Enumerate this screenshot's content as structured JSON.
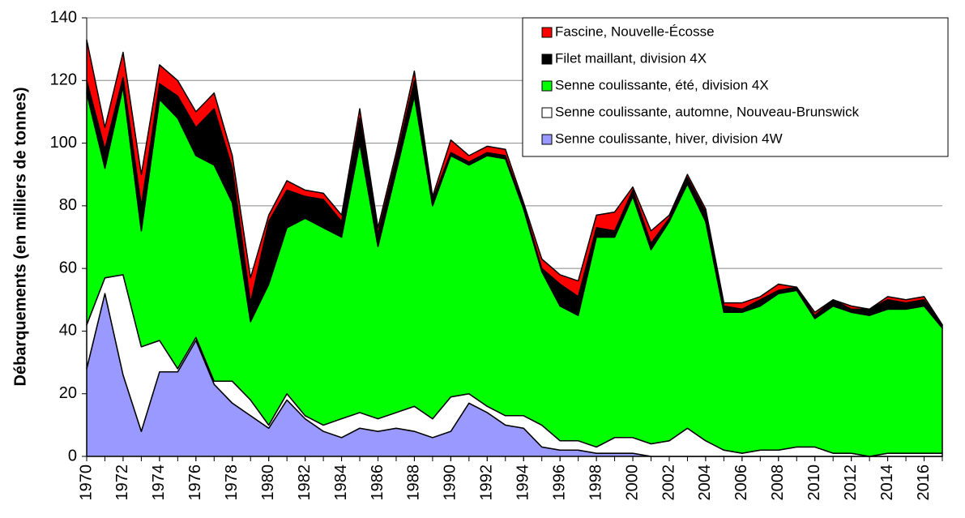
{
  "chart_data": {
    "type": "stacked-area",
    "ylabel": "Débarquements (en milliers de tonnes)",
    "x": [
      1970,
      1971,
      1972,
      1973,
      1974,
      1975,
      1976,
      1977,
      1978,
      1979,
      1980,
      1981,
      1982,
      1983,
      1984,
      1985,
      1986,
      1987,
      1988,
      1989,
      1990,
      1991,
      1992,
      1993,
      1994,
      1995,
      1996,
      1997,
      1998,
      1999,
      2000,
      2001,
      2002,
      2003,
      2004,
      2005,
      2006,
      2007,
      2008,
      2009,
      2010,
      2011,
      2012,
      2013,
      2014,
      2015,
      2016,
      2017
    ],
    "xlim": [
      1970,
      2017
    ],
    "xticks": [
      1970,
      1972,
      1974,
      1976,
      1978,
      1980,
      1982,
      1984,
      1986,
      1988,
      1990,
      1992,
      1994,
      1996,
      1998,
      2000,
      2002,
      2004,
      2006,
      2008,
      2010,
      2012,
      2014,
      2016
    ],
    "ylim": [
      0,
      140
    ],
    "yticks": [
      0,
      20,
      40,
      60,
      80,
      100,
      120,
      140
    ],
    "grid": true,
    "legend": "upper right",
    "series": [
      {
        "name": "Senne coulissante, hiver, division 4W",
        "color": "#9999ff",
        "values": [
          28,
          52,
          26,
          8,
          27,
          27,
          37,
          23,
          17,
          13,
          9,
          18,
          12,
          8,
          6,
          9,
          8,
          9,
          8,
          6,
          8,
          17,
          14,
          10,
          9,
          3,
          2,
          2,
          1,
          1,
          1,
          0,
          0,
          0,
          0,
          0,
          0,
          0,
          0,
          0,
          0,
          0,
          0,
          0,
          0,
          0,
          0,
          0
        ]
      },
      {
        "name": "Senne coulissante, automne, Nouveau-Brunswick",
        "color": "#ffffff",
        "values": [
          14,
          5,
          32,
          27,
          10,
          1,
          1,
          1,
          7,
          5,
          1,
          2,
          1,
          2,
          6,
          5,
          4,
          5,
          8,
          6,
          11,
          3,
          2,
          3,
          4,
          7,
          3,
          3,
          2,
          5,
          5,
          4,
          5,
          9,
          5,
          2,
          1,
          2,
          2,
          3,
          3,
          1,
          1,
          0,
          1,
          1,
          1,
          1
        ]
      },
      {
        "name": "Senne coulissante, été, division 4X",
        "color": "#00ff00",
        "values": [
          74,
          35,
          60,
          37,
          77,
          80,
          58,
          69,
          57,
          25,
          45,
          53,
          63,
          63,
          58,
          86,
          55,
          77,
          99,
          68,
          77,
          73,
          80,
          82,
          66,
          49,
          43,
          40,
          67,
          64,
          77,
          62,
          70,
          78,
          70,
          44,
          45,
          46,
          50,
          50,
          41,
          47,
          45,
          45,
          46,
          46,
          47,
          40
        ]
      },
      {
        "name": "Filet maillant, division 4X",
        "color": "#000000",
        "values": [
          4,
          6,
          3,
          8,
          5,
          7,
          9,
          18,
          11,
          6,
          20,
          12,
          7,
          9,
          5,
          8,
          4,
          4,
          5,
          2,
          1,
          1,
          1,
          1,
          1,
          1,
          7,
          6,
          3,
          2,
          2,
          2,
          1,
          2,
          3,
          2,
          1,
          2,
          1,
          1,
          1,
          2,
          1,
          2,
          3,
          2,
          2,
          1
        ]
      },
      {
        "name": "Fascine, Nouvelle-Écosse",
        "color": "#ff0000",
        "values": [
          13,
          7,
          8,
          10,
          6,
          5,
          5,
          5,
          4,
          8,
          2,
          3,
          2,
          2,
          2,
          3,
          2,
          2,
          3,
          1,
          4,
          2,
          2,
          2,
          1,
          3,
          3,
          5,
          4,
          6,
          1,
          4,
          1,
          1,
          1,
          1,
          2,
          1,
          2,
          0,
          1,
          0,
          1,
          0,
          1,
          1,
          1,
          0
        ]
      }
    ]
  }
}
